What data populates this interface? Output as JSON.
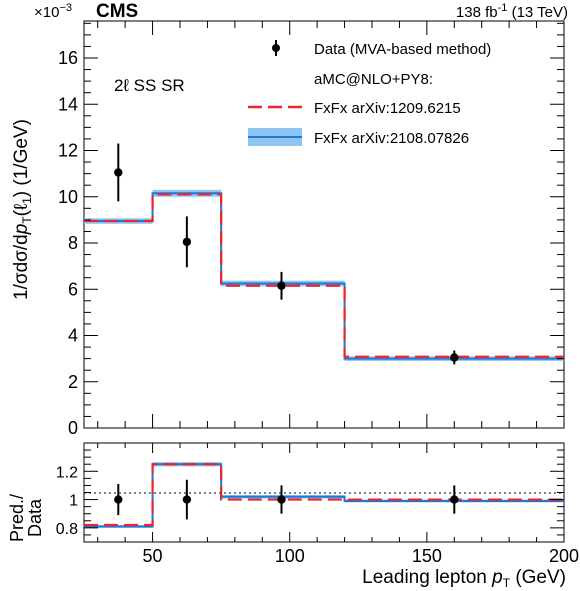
{
  "header": {
    "exponent_prefix": "×10",
    "exponent_power": "−3",
    "experiment": "CMS",
    "lumi_value": "138 fb",
    "lumi_power": "-1",
    "energy": "(13 TeV)"
  },
  "region_label": "2ℓ SS SR",
  "legend": {
    "data": "Data (MVA-based method)",
    "generator": "aMC@NLO+PY8:",
    "fxfx_old": "FxFx arXiv:1209.6215",
    "fxfx_new": "FxFx arXiv:2108.07826"
  },
  "colors": {
    "data": "#000000",
    "fxfx_old": "#e8262d",
    "fxfx_new": "#1f78d8",
    "fxfx_band": "#8fc5f2",
    "reference_line": "#000000"
  },
  "chart_data": [
    {
      "type": "line",
      "panel": "main",
      "ylabel": "1/σdσ/dpT(ℓ1) (1/GeV)",
      "y_multiplier": "×10^-3",
      "xlim": [
        25,
        200
      ],
      "ylim": [
        0,
        17.6
      ],
      "y_ticks": [
        "0",
        "2",
        "4",
        "6",
        "8",
        "10",
        "12",
        "14",
        "16"
      ],
      "bin_edges": [
        25,
        50,
        75,
        120,
        200
      ],
      "data": {
        "name": "Data (MVA-based method)",
        "x": [
          37.5,
          62.5,
          97,
          160
        ],
        "y": [
          11.05,
          8.05,
          6.15,
          3.05
        ],
        "y_err_up": [
          1.25,
          1.1,
          0.6,
          0.3
        ],
        "y_err_down": [
          1.25,
          1.1,
          0.6,
          0.3
        ]
      },
      "series": [
        {
          "name": "FxFx arXiv:1209.6215",
          "style": "dashed",
          "values": [
            8.95,
            10.1,
            6.15,
            3.08
          ]
        },
        {
          "name": "FxFx arXiv:2108.07826",
          "style": "solid_with_band",
          "values": [
            8.95,
            10.15,
            6.25,
            3.0
          ],
          "band_halfwidth": [
            0.12,
            0.15,
            0.12,
            0.1
          ]
        }
      ],
      "grid": false,
      "legend_position": "top-right"
    },
    {
      "type": "line",
      "panel": "ratio",
      "ylabel": "Pred./Data",
      "xlabel": "Leading lepton pT (GeV)",
      "xlim": [
        25,
        200
      ],
      "ylim": [
        0.7,
        1.4
      ],
      "x_ticks": [
        "50",
        "100",
        "150",
        "200"
      ],
      "y_ticks": [
        "0.8",
        "1",
        "1.2"
      ],
      "bin_edges": [
        25,
        50,
        75,
        120,
        200
      ],
      "reference_y": 1.0,
      "data": {
        "x": [
          37.5,
          62.5,
          97,
          160
        ],
        "y": [
          1.0,
          1.0,
          1.0,
          1.0
        ],
        "y_err_up": [
          0.11,
          0.14,
          0.1,
          0.1
        ],
        "y_err_down": [
          0.11,
          0.14,
          0.1,
          0.1
        ]
      },
      "series": [
        {
          "name": "FxFx arXiv:1209.6215",
          "style": "dashed",
          "values": [
            0.82,
            1.25,
            1.0,
            1.0
          ]
        },
        {
          "name": "FxFx arXiv:2108.07826",
          "style": "solid_with_band",
          "values": [
            0.81,
            1.25,
            1.02,
            0.99
          ],
          "band_halfwidth": [
            0.01,
            0.015,
            0.012,
            0.01
          ]
        }
      ]
    }
  ]
}
